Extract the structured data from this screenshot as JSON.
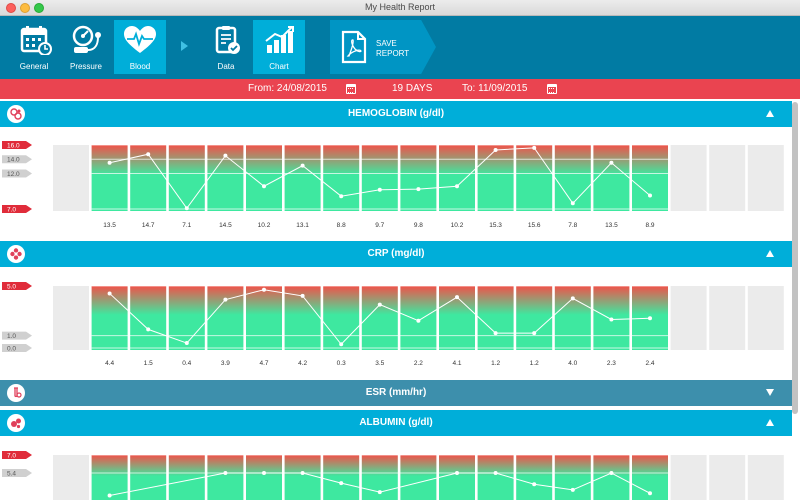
{
  "window": {
    "title": "My Health Report"
  },
  "toolbar": {
    "items": [
      {
        "label": "General",
        "icon": "calendar-icon",
        "active": false
      },
      {
        "label": "Pressure",
        "icon": "blood-pressure-icon",
        "active": false
      },
      {
        "label": "Blood",
        "icon": "heart-pulse-icon",
        "active": true
      },
      {
        "label": "Data",
        "icon": "clipboard-check-icon",
        "active": false
      },
      {
        "label": "Chart",
        "icon": "bar-chart-icon",
        "active": true
      }
    ],
    "save": {
      "line1": "SAVE",
      "line2": "REPORT",
      "icon": "pdf-icon"
    }
  },
  "datebar": {
    "from": "From: 24/08/2015",
    "days": "19 DAYS",
    "to": "To: 11/09/2015"
  },
  "colors": {
    "toolbar": "#017ba3",
    "active": "#00aed9",
    "section": "#00aed9",
    "collapsed": "#3d8fac",
    "datebar": "#ea4450",
    "good": "#3ee8a0",
    "bad": "#f0524a"
  },
  "sections": [
    {
      "title": "HEMOGLOBIN (g/dl)",
      "icon": "blood-cells-icon",
      "expanded": true
    },
    {
      "title": "CRP (mg/dl)",
      "icon": "flower-icon",
      "expanded": true
    },
    {
      "title": "ESR (mm/hr)",
      "icon": "test-tube-icon",
      "expanded": false
    },
    {
      "title": "ALBUMIN (g/dl)",
      "icon": "albumin-icon",
      "expanded": true
    }
  ],
  "chart_data": [
    {
      "type": "line",
      "title": "HEMOGLOBIN (g/dl)",
      "ylim": [
        7.0,
        16.0
      ],
      "reference_labels": [
        {
          "label": "16.0",
          "value": 16.0,
          "kind": "red"
        },
        {
          "label": "14.0",
          "value": 14.0,
          "kind": "gray"
        },
        {
          "label": "12.0",
          "value": 12.0,
          "kind": "gray"
        },
        {
          "label": "7.0",
          "value": 7.0,
          "kind": "red"
        }
      ],
      "values": [
        13.5,
        14.7,
        7.1,
        14.5,
        10.2,
        13.1,
        8.8,
        9.7,
        9.8,
        10.2,
        15.3,
        15.6,
        7.8,
        13.5,
        8.9
      ],
      "value_labels": [
        "13.5",
        "14.7",
        "7.1",
        "14.5",
        "10.2",
        "13.1",
        "8.8",
        "9.7",
        "9.8",
        "10.2",
        "15.3",
        "15.6",
        "7.8",
        "13.5",
        "8.9"
      ]
    },
    {
      "type": "line",
      "title": "CRP (mg/dl)",
      "ylim": [
        0.0,
        5.0
      ],
      "reference_labels": [
        {
          "label": "5.0",
          "value": 5.0,
          "kind": "red"
        },
        {
          "label": "1.0",
          "value": 1.0,
          "kind": "gray"
        },
        {
          "label": "0.0",
          "value": 0.0,
          "kind": "gray"
        }
      ],
      "values": [
        4.4,
        1.5,
        0.4,
        3.9,
        4.7,
        4.2,
        0.3,
        3.5,
        2.2,
        4.1,
        1.2,
        1.2,
        4.0,
        2.3,
        2.4
      ],
      "value_labels": [
        "4.4",
        "1.5",
        "0.4",
        "3.9",
        "4.7",
        "4.2",
        "0.3",
        "3.5",
        "2.2",
        "4.1",
        "1.2",
        "1.2",
        "4.0",
        "2.3",
        "2.4"
      ]
    },
    {
      "type": "line",
      "title": "ALBUMIN (g/dl)",
      "ylim": [
        3.0,
        7.0
      ],
      "reference_labels": [
        {
          "label": "7.0",
          "value": 7.0,
          "kind": "red"
        },
        {
          "label": "5.4",
          "value": 5.4,
          "kind": "gray"
        }
      ],
      "values": [
        3.4,
        null,
        null,
        5.4,
        5.4,
        5.4,
        4.5,
        3.7,
        null,
        5.4,
        5.4,
        4.4,
        3.9,
        5.4,
        3.6
      ],
      "value_labels": []
    }
  ]
}
